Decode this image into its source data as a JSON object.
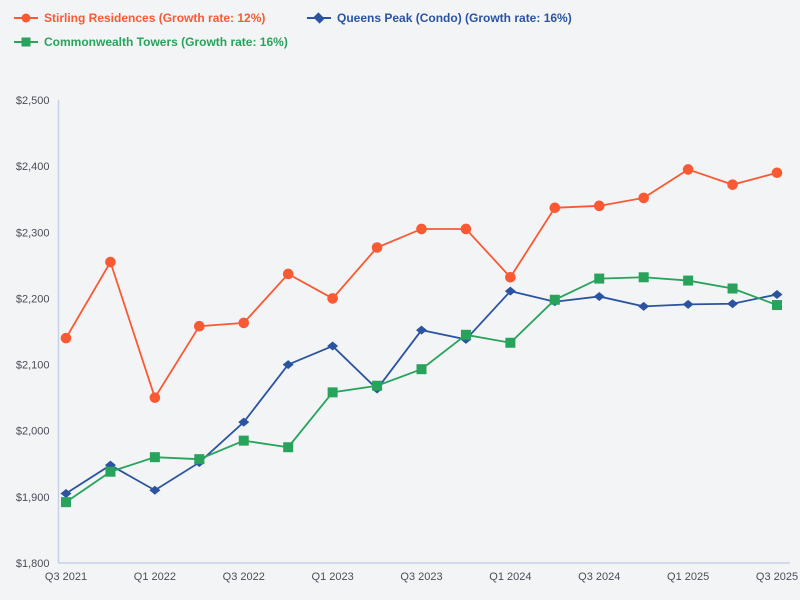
{
  "chart_data": {
    "type": "line",
    "title": "",
    "xlabel": "",
    "ylabel": "",
    "ylim": [
      1800,
      2500
    ],
    "grid": false,
    "legend_position": "top-left",
    "background_color": "#f3f4f6",
    "axis_color": "#c7d1e6",
    "tick_label_color": "#4c4c57",
    "x": [
      "Q3 2021",
      "Q4 2021",
      "Q1 2022",
      "Q2 2022",
      "Q3 2022",
      "Q4 2022",
      "Q1 2023",
      "Q2 2023",
      "Q3 2023",
      "Q4 2023",
      "Q1 2024",
      "Q2 2024",
      "Q3 2024",
      "Q4 2024",
      "Q1 2025",
      "Q2 2025",
      "Q3 2025"
    ],
    "x_tick_labels": [
      "Q3 2021",
      "Q1 2022",
      "Q3 2022",
      "Q1 2023",
      "Q3 2023",
      "Q1 2024",
      "Q3 2024",
      "Q1 2025",
      "Q3 2025"
    ],
    "y_ticks": [
      2500,
      2400,
      2300,
      2200,
      2100,
      2000,
      1900,
      1800
    ],
    "y_tick_labels": [
      "$2,500",
      "$2,400",
      "$2,300",
      "$2,200",
      "$2,100",
      "$2,000",
      "$1,900",
      "$1,800"
    ],
    "series": [
      {
        "id": "stirling-residences",
        "name": "Stirling Residences",
        "legend_label": "Stirling Residences (Growth rate: 12%)",
        "growth_rate": "12%",
        "color": "#f95a33",
        "marker": "circle",
        "values": [
          2140,
          2255,
          2050,
          2158,
          2163,
          2237,
          2200,
          2277,
          2305,
          2305,
          2232,
          2337,
          2340,
          2352,
          2395,
          2372,
          2390
        ]
      },
      {
        "id": "queens-peak",
        "name": "Queens Peak (Condo)",
        "legend_label": "Queens Peak (Condo) (Growth rate: 16%)",
        "growth_rate": "16%",
        "color": "#2a53a0",
        "marker": "diamond",
        "values": [
          1905,
          1948,
          1910,
          1952,
          2013,
          2100,
          2128,
          2063,
          2152,
          2138,
          2211,
          2195,
          2203,
          2188,
          2191,
          2192,
          2206
        ]
      },
      {
        "id": "commonwealth-towers",
        "name": "Commonwealth Towers",
        "legend_label": "Commonwealth Towers (Growth rate: 16%)",
        "growth_rate": "16%",
        "color": "#28a35c",
        "marker": "square",
        "values": [
          1892,
          1938,
          1960,
          1957,
          1985,
          1975,
          2058,
          2068,
          2093,
          2145,
          2133,
          2198,
          2230,
          2232,
          2227,
          2215,
          2190
        ]
      }
    ]
  }
}
